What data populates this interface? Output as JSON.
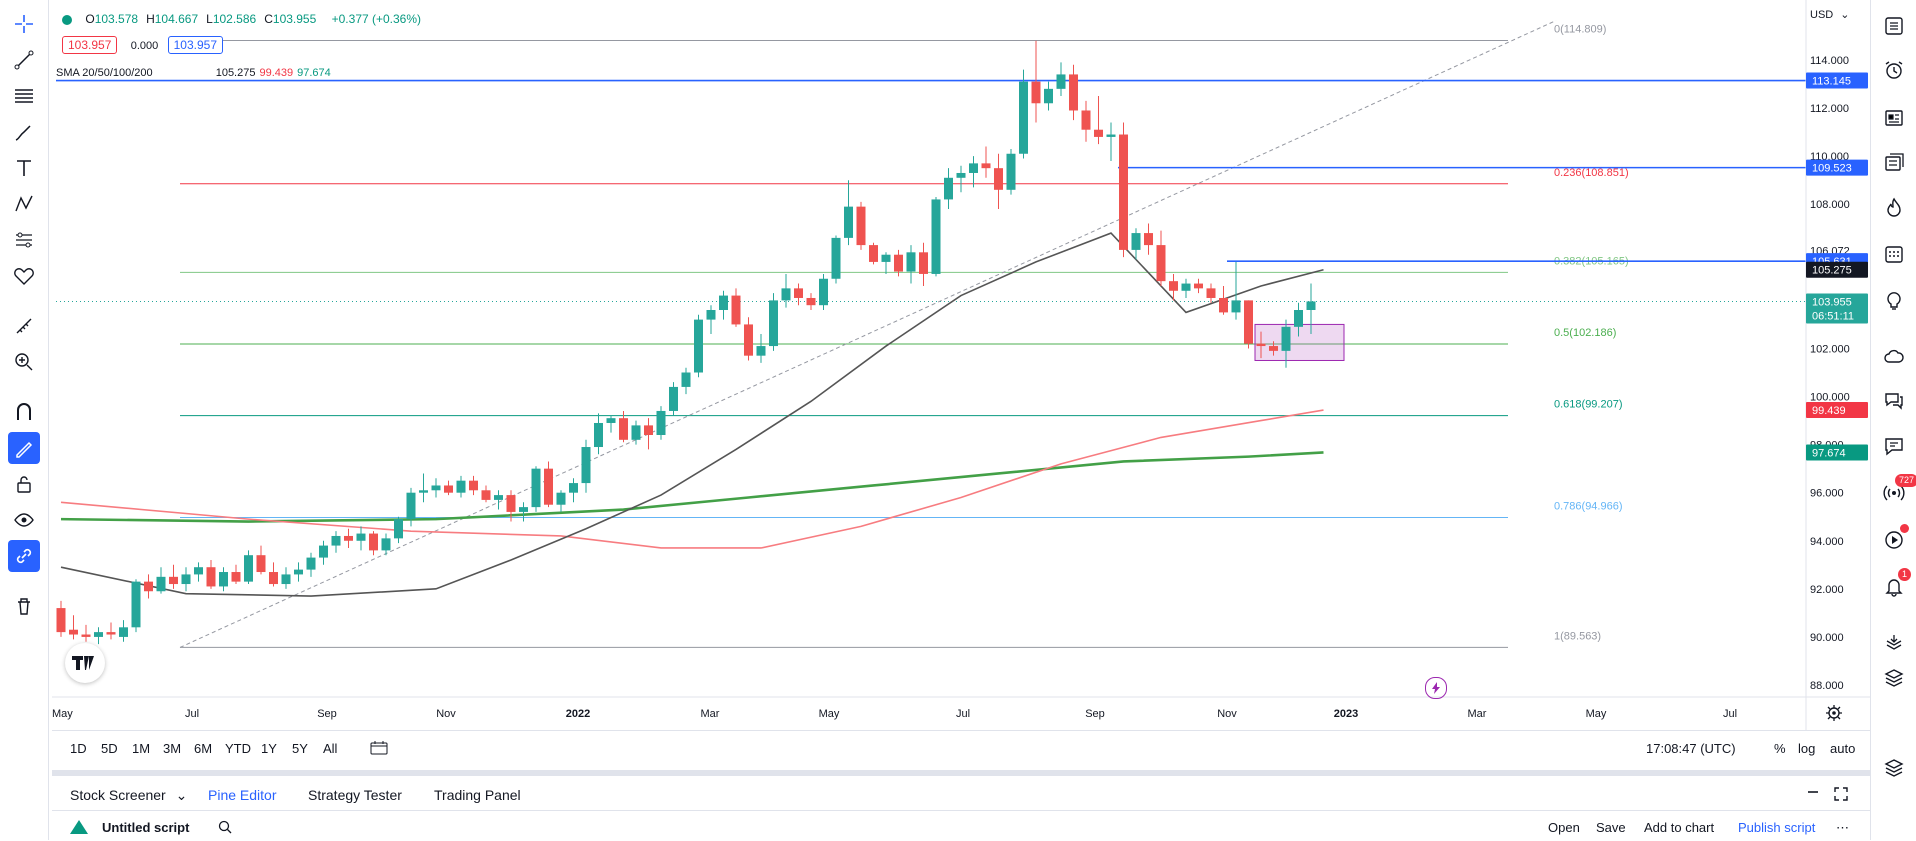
{
  "legend": {
    "ohlc": [
      {
        "label": "O",
        "value": "103.578"
      },
      {
        "label": "H",
        "value": "104.667"
      },
      {
        "label": "L",
        "value": "102.586"
      },
      {
        "label": "C",
        "value": "103.955"
      }
    ],
    "change": "+0.377 (+0.36%)",
    "sell_price": "103.957",
    "spread": "0.000",
    "buy_price": "103.957",
    "sma_label": "SMA 20/50/100/200",
    "sma_values": [
      {
        "value": "105.275",
        "color": "#131722"
      },
      {
        "value": "99.439",
        "color": "#f23645"
      },
      {
        "value": "97.674",
        "color": "#089981"
      }
    ]
  },
  "currency": "USD",
  "colors": {
    "up": "#26a69a",
    "down": "#ef5350",
    "accent": "#2962ff",
    "sma20": "#555555",
    "sma100": "#f77c80",
    "sma200": "#43a047"
  },
  "chart_data": {
    "type": "candlestick",
    "y_ticks": [
      "114.000",
      "112.000",
      "110.000",
      "108.000",
      "106.072",
      "102.000",
      "100.000",
      "98.000",
      "96.000",
      "94.000",
      "92.000",
      "90.000",
      "88.000"
    ],
    "x_ticks": [
      {
        "label": "May",
        "bold": false
      },
      {
        "label": "Jul",
        "bold": false
      },
      {
        "label": "Sep",
        "bold": false
      },
      {
        "label": "Nov",
        "bold": false
      },
      {
        "label": "2022",
        "bold": true
      },
      {
        "label": "Mar",
        "bold": false
      },
      {
        "label": "May",
        "bold": false
      },
      {
        "label": "Jul",
        "bold": false
      },
      {
        "label": "Sep",
        "bold": false
      },
      {
        "label": "Nov",
        "bold": false
      },
      {
        "label": "2023",
        "bold": true
      },
      {
        "label": "Mar",
        "bold": false
      },
      {
        "label": "May",
        "bold": false
      },
      {
        "label": "Jul",
        "bold": false
      }
    ],
    "fib_levels": [
      {
        "label": "0(114.809)",
        "value": 114.809,
        "color": "#9598a1"
      },
      {
        "label": "0.236(108.851)",
        "value": 108.851,
        "color": "#f23645"
      },
      {
        "label": "0.382(105.165)",
        "value": 105.165,
        "color": "#81c784"
      },
      {
        "label": "0.5(102.186)",
        "value": 102.186,
        "color": "#4caf50"
      },
      {
        "label": "0.618(99.207)",
        "value": 99.207,
        "color": "#089981"
      },
      {
        "label": "0.786(94.966)",
        "value": 94.966,
        "color": "#64b5f6"
      },
      {
        "label": "1(89.563)",
        "value": 89.563,
        "color": "#9598a1"
      }
    ],
    "horizontal_lines": [
      {
        "label": "113.145",
        "value": 113.145
      },
      {
        "label": "109.523",
        "value": 109.523
      },
      {
        "label": "105.631",
        "value": 105.631
      }
    ],
    "price_labels": [
      {
        "label": "105.275",
        "value": 105.275,
        "bg": "#131722"
      },
      {
        "label": "103.955",
        "value": 103.955,
        "bg": "#26a69a"
      },
      {
        "label": "99.439",
        "value": 99.439,
        "bg": "#f23645"
      },
      {
        "label": "97.674",
        "value": 97.674,
        "bg": "#089981"
      }
    ],
    "countdown": "06:51:11",
    "candles": [
      {
        "o": 91.2,
        "h": 91.5,
        "l": 90.0,
        "c": 90.2
      },
      {
        "o": 90.3,
        "h": 90.9,
        "l": 89.9,
        "c": 90.1
      },
      {
        "o": 90.1,
        "h": 90.5,
        "l": 89.8,
        "c": 90.0
      },
      {
        "o": 90.0,
        "h": 90.4,
        "l": 89.7,
        "c": 90.2
      },
      {
        "o": 90.2,
        "h": 90.6,
        "l": 89.9,
        "c": 90.1
      },
      {
        "o": 90.0,
        "h": 90.7,
        "l": 89.8,
        "c": 90.4
      },
      {
        "o": 90.4,
        "h": 92.4,
        "l": 90.2,
        "c": 92.3
      },
      {
        "o": 92.3,
        "h": 92.6,
        "l": 91.6,
        "c": 91.9
      },
      {
        "o": 91.9,
        "h": 92.9,
        "l": 91.8,
        "c": 92.5
      },
      {
        "o": 92.5,
        "h": 93.0,
        "l": 92.0,
        "c": 92.2
      },
      {
        "o": 92.2,
        "h": 92.9,
        "l": 91.9,
        "c": 92.6
      },
      {
        "o": 92.6,
        "h": 93.1,
        "l": 92.3,
        "c": 92.9
      },
      {
        "o": 92.9,
        "h": 93.2,
        "l": 92.0,
        "c": 92.1
      },
      {
        "o": 92.1,
        "h": 92.9,
        "l": 91.9,
        "c": 92.7
      },
      {
        "o": 92.7,
        "h": 93.0,
        "l": 92.2,
        "c": 92.3
      },
      {
        "o": 92.3,
        "h": 93.6,
        "l": 92.2,
        "c": 93.4
      },
      {
        "o": 93.4,
        "h": 93.8,
        "l": 92.6,
        "c": 92.7
      },
      {
        "o": 92.7,
        "h": 93.1,
        "l": 92.1,
        "c": 92.2
      },
      {
        "o": 92.2,
        "h": 92.9,
        "l": 92.0,
        "c": 92.6
      },
      {
        "o": 92.6,
        "h": 93.1,
        "l": 92.3,
        "c": 92.8
      },
      {
        "o": 92.8,
        "h": 93.5,
        "l": 92.5,
        "c": 93.3
      },
      {
        "o": 93.3,
        "h": 94.0,
        "l": 93.0,
        "c": 93.8
      },
      {
        "o": 93.8,
        "h": 94.4,
        "l": 93.5,
        "c": 94.2
      },
      {
        "o": 94.2,
        "h": 94.5,
        "l": 93.7,
        "c": 94.0
      },
      {
        "o": 94.0,
        "h": 94.6,
        "l": 93.6,
        "c": 94.3
      },
      {
        "o": 94.3,
        "h": 94.4,
        "l": 93.4,
        "c": 93.6
      },
      {
        "o": 93.6,
        "h": 94.3,
        "l": 93.4,
        "c": 94.1
      },
      {
        "o": 94.1,
        "h": 95.0,
        "l": 93.9,
        "c": 94.9
      },
      {
        "o": 94.9,
        "h": 96.2,
        "l": 94.6,
        "c": 96.0
      },
      {
        "o": 96.0,
        "h": 96.8,
        "l": 95.6,
        "c": 96.1
      },
      {
        "o": 96.1,
        "h": 96.6,
        "l": 95.8,
        "c": 96.3
      },
      {
        "o": 96.3,
        "h": 96.5,
        "l": 95.9,
        "c": 96.0
      },
      {
        "o": 96.0,
        "h": 96.7,
        "l": 95.8,
        "c": 96.5
      },
      {
        "o": 96.5,
        "h": 96.7,
        "l": 95.9,
        "c": 96.1
      },
      {
        "o": 96.1,
        "h": 96.3,
        "l": 95.6,
        "c": 95.7
      },
      {
        "o": 95.7,
        "h": 96.1,
        "l": 95.3,
        "c": 95.9
      },
      {
        "o": 95.9,
        "h": 96.1,
        "l": 94.8,
        "c": 95.2
      },
      {
        "o": 95.2,
        "h": 95.6,
        "l": 94.8,
        "c": 95.4
      },
      {
        "o": 95.4,
        "h": 97.1,
        "l": 95.2,
        "c": 97.0
      },
      {
        "o": 97.0,
        "h": 97.3,
        "l": 95.4,
        "c": 95.5
      },
      {
        "o": 95.5,
        "h": 96.1,
        "l": 95.2,
        "c": 96.0
      },
      {
        "o": 96.0,
        "h": 96.6,
        "l": 95.6,
        "c": 96.4
      },
      {
        "o": 96.4,
        "h": 98.2,
        "l": 96.0,
        "c": 97.9
      },
      {
        "o": 97.9,
        "h": 99.3,
        "l": 97.6,
        "c": 98.9
      },
      {
        "o": 98.9,
        "h": 99.2,
        "l": 98.5,
        "c": 99.1
      },
      {
        "o": 99.1,
        "h": 99.4,
        "l": 98.1,
        "c": 98.2
      },
      {
        "o": 98.2,
        "h": 99.0,
        "l": 98.0,
        "c": 98.8
      },
      {
        "o": 98.8,
        "h": 99.1,
        "l": 97.8,
        "c": 98.4
      },
      {
        "o": 98.4,
        "h": 99.6,
        "l": 98.2,
        "c": 99.4
      },
      {
        "o": 99.4,
        "h": 100.6,
        "l": 99.2,
        "c": 100.4
      },
      {
        "o": 100.4,
        "h": 101.2,
        "l": 100.1,
        "c": 101.0
      },
      {
        "o": 101.0,
        "h": 103.4,
        "l": 100.8,
        "c": 103.2
      },
      {
        "o": 103.2,
        "h": 103.8,
        "l": 102.6,
        "c": 103.6
      },
      {
        "o": 103.6,
        "h": 104.4,
        "l": 103.2,
        "c": 104.2
      },
      {
        "o": 104.2,
        "h": 104.5,
        "l": 102.9,
        "c": 103.0
      },
      {
        "o": 103.0,
        "h": 103.3,
        "l": 101.5,
        "c": 101.7
      },
      {
        "o": 101.7,
        "h": 102.6,
        "l": 101.4,
        "c": 102.1
      },
      {
        "o": 102.1,
        "h": 104.3,
        "l": 101.9,
        "c": 104.0
      },
      {
        "o": 104.0,
        "h": 105.1,
        "l": 103.7,
        "c": 104.5
      },
      {
        "o": 104.5,
        "h": 104.7,
        "l": 103.8,
        "c": 104.1
      },
      {
        "o": 104.1,
        "h": 104.3,
        "l": 103.6,
        "c": 103.8
      },
      {
        "o": 103.8,
        "h": 105.1,
        "l": 103.6,
        "c": 104.9
      },
      {
        "o": 104.9,
        "h": 106.7,
        "l": 104.7,
        "c": 106.6
      },
      {
        "o": 106.6,
        "h": 109.0,
        "l": 106.3,
        "c": 107.9
      },
      {
        "o": 107.9,
        "h": 108.1,
        "l": 106.1,
        "c": 106.3
      },
      {
        "o": 106.3,
        "h": 106.4,
        "l": 105.5,
        "c": 105.6
      },
      {
        "o": 105.6,
        "h": 106.0,
        "l": 105.1,
        "c": 105.9
      },
      {
        "o": 105.9,
        "h": 106.1,
        "l": 105.0,
        "c": 105.2
      },
      {
        "o": 105.2,
        "h": 106.3,
        "l": 104.7,
        "c": 106.0
      },
      {
        "o": 106.0,
        "h": 106.4,
        "l": 104.6,
        "c": 105.1
      },
      {
        "o": 105.1,
        "h": 108.3,
        "l": 105.0,
        "c": 108.2
      },
      {
        "o": 108.2,
        "h": 109.5,
        "l": 107.8,
        "c": 109.1
      },
      {
        "o": 109.1,
        "h": 109.6,
        "l": 108.5,
        "c": 109.3
      },
      {
        "o": 109.3,
        "h": 110.0,
        "l": 108.7,
        "c": 109.7
      },
      {
        "o": 109.7,
        "h": 110.4,
        "l": 109.1,
        "c": 109.5
      },
      {
        "o": 109.5,
        "h": 110.1,
        "l": 107.8,
        "c": 108.6
      },
      {
        "o": 108.6,
        "h": 110.3,
        "l": 108.4,
        "c": 110.1
      },
      {
        "o": 110.1,
        "h": 113.6,
        "l": 109.9,
        "c": 113.1
      },
      {
        "o": 113.1,
        "h": 114.8,
        "l": 111.4,
        "c": 112.2
      },
      {
        "o": 112.2,
        "h": 113.1,
        "l": 111.9,
        "c": 112.8
      },
      {
        "o": 112.8,
        "h": 113.9,
        "l": 112.5,
        "c": 113.4
      },
      {
        "o": 113.4,
        "h": 113.8,
        "l": 111.5,
        "c": 111.9
      },
      {
        "o": 111.9,
        "h": 112.3,
        "l": 110.6,
        "c": 111.1
      },
      {
        "o": 111.1,
        "h": 112.5,
        "l": 110.5,
        "c": 110.8
      },
      {
        "o": 110.8,
        "h": 111.4,
        "l": 109.8,
        "c": 110.9
      },
      {
        "o": 110.9,
        "h": 111.4,
        "l": 105.8,
        "c": 106.1
      },
      {
        "o": 106.1,
        "h": 107.0,
        "l": 105.7,
        "c": 106.8
      },
      {
        "o": 106.8,
        "h": 107.2,
        "l": 105.9,
        "c": 106.3
      },
      {
        "o": 106.3,
        "h": 106.9,
        "l": 104.6,
        "c": 104.8
      },
      {
        "o": 104.8,
        "h": 105.1,
        "l": 104.0,
        "c": 104.4
      },
      {
        "o": 104.4,
        "h": 104.9,
        "l": 104.1,
        "c": 104.7
      },
      {
        "o": 104.7,
        "h": 104.9,
        "l": 104.3,
        "c": 104.5
      },
      {
        "o": 104.5,
        "h": 104.7,
        "l": 103.9,
        "c": 104.1
      },
      {
        "o": 104.1,
        "h": 104.6,
        "l": 103.4,
        "c": 103.5
      },
      {
        "o": 103.5,
        "h": 105.6,
        "l": 103.2,
        "c": 104.0
      },
      {
        "o": 104.0,
        "h": 104.0,
        "l": 102.0,
        "c": 102.2
      },
      {
        "o": 102.2,
        "h": 102.7,
        "l": 101.6,
        "c": 102.1
      },
      {
        "o": 102.1,
        "h": 102.3,
        "l": 101.7,
        "c": 101.9
      },
      {
        "o": 101.9,
        "h": 103.2,
        "l": 101.2,
        "c": 102.9
      },
      {
        "o": 102.9,
        "h": 103.9,
        "l": 102.5,
        "c": 103.6
      },
      {
        "o": 103.6,
        "h": 104.7,
        "l": 102.6,
        "c": 103.955
      }
    ],
    "sma20_series": [
      {
        "i": 0,
        "v": 92.9
      },
      {
        "i": 10,
        "v": 91.8
      },
      {
        "i": 20,
        "v": 91.7
      },
      {
        "i": 30,
        "v": 92.0
      },
      {
        "i": 36,
        "v": 93.2
      },
      {
        "i": 42,
        "v": 94.5
      },
      {
        "i": 48,
        "v": 95.9
      },
      {
        "i": 54,
        "v": 97.8
      },
      {
        "i": 60,
        "v": 99.8
      },
      {
        "i": 66,
        "v": 102.1
      },
      {
        "i": 72,
        "v": 104.2
      },
      {
        "i": 78,
        "v": 105.6
      },
      {
        "i": 84,
        "v": 106.8
      },
      {
        "i": 90,
        "v": 103.5
      },
      {
        "i": 96,
        "v": 104.6
      },
      {
        "i": 101,
        "v": 105.275
      }
    ],
    "sma100_series": [
      {
        "i": 0,
        "v": 95.6
      },
      {
        "i": 15,
        "v": 94.9
      },
      {
        "i": 28,
        "v": 94.4
      },
      {
        "i": 40,
        "v": 94.2
      },
      {
        "i": 48,
        "v": 93.7
      },
      {
        "i": 56,
        "v": 93.7
      },
      {
        "i": 64,
        "v": 94.6
      },
      {
        "i": 72,
        "v": 95.8
      },
      {
        "i": 80,
        "v": 97.2
      },
      {
        "i": 88,
        "v": 98.3
      },
      {
        "i": 96,
        "v": 99.0
      },
      {
        "i": 101,
        "v": 99.439
      }
    ],
    "sma200_series": [
      {
        "i": 0,
        "v": 94.9
      },
      {
        "i": 15,
        "v": 94.8
      },
      {
        "i": 30,
        "v": 94.9
      },
      {
        "i": 45,
        "v": 95.3
      },
      {
        "i": 55,
        "v": 95.8
      },
      {
        "i": 65,
        "v": 96.3
      },
      {
        "i": 75,
        "v": 96.8
      },
      {
        "i": 85,
        "v": 97.3
      },
      {
        "i": 95,
        "v": 97.5
      },
      {
        "i": 101,
        "v": 97.674
      }
    ]
  },
  "bottom_bar": {
    "ranges": [
      "1D",
      "5D",
      "1M",
      "3M",
      "6M",
      "YTD",
      "1Y",
      "5Y",
      "All"
    ],
    "time": "17:08:47 (UTC)",
    "pct": "%",
    "log": "log",
    "auto": "auto"
  },
  "panel_tabs": [
    {
      "label": "Stock Screener",
      "active": false
    },
    {
      "label": "Pine Editor",
      "active": true
    },
    {
      "label": "Strategy Tester",
      "active": false
    },
    {
      "label": "Trading Panel",
      "active": false
    }
  ],
  "script_bar": {
    "title": "Untitled script",
    "actions": [
      "Open",
      "Save",
      "Add to chart",
      "Publish script"
    ]
  },
  "badges": {
    "streams": "727",
    "alerts": "1"
  }
}
